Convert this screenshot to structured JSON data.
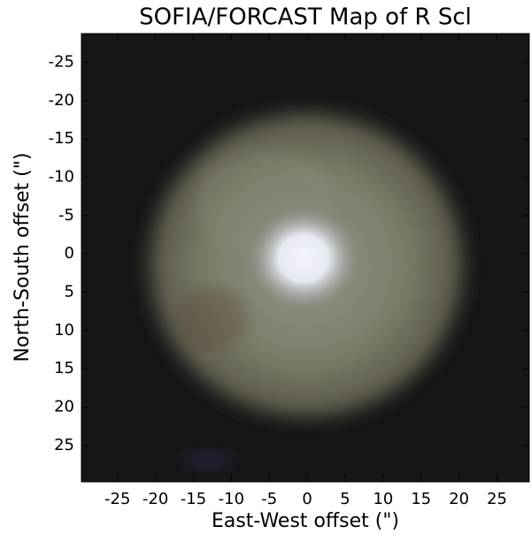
{
  "chart_data": {
    "type": "image",
    "title": "SOFIA/FORCAST Map of R Scl",
    "xlabel": "East-West offset (\")",
    "ylabel": "North-South offset (\")",
    "xlim": [
      -29.75,
      29.25
    ],
    "ylim": [
      29.75,
      -28.75
    ],
    "xticks": [
      -25,
      -20,
      -15,
      -10,
      -5,
      0,
      5,
      10,
      15,
      20,
      25
    ],
    "yticks": [
      -25,
      -20,
      -15,
      -10,
      -5,
      0,
      5,
      10,
      15,
      20,
      25
    ]
  }
}
